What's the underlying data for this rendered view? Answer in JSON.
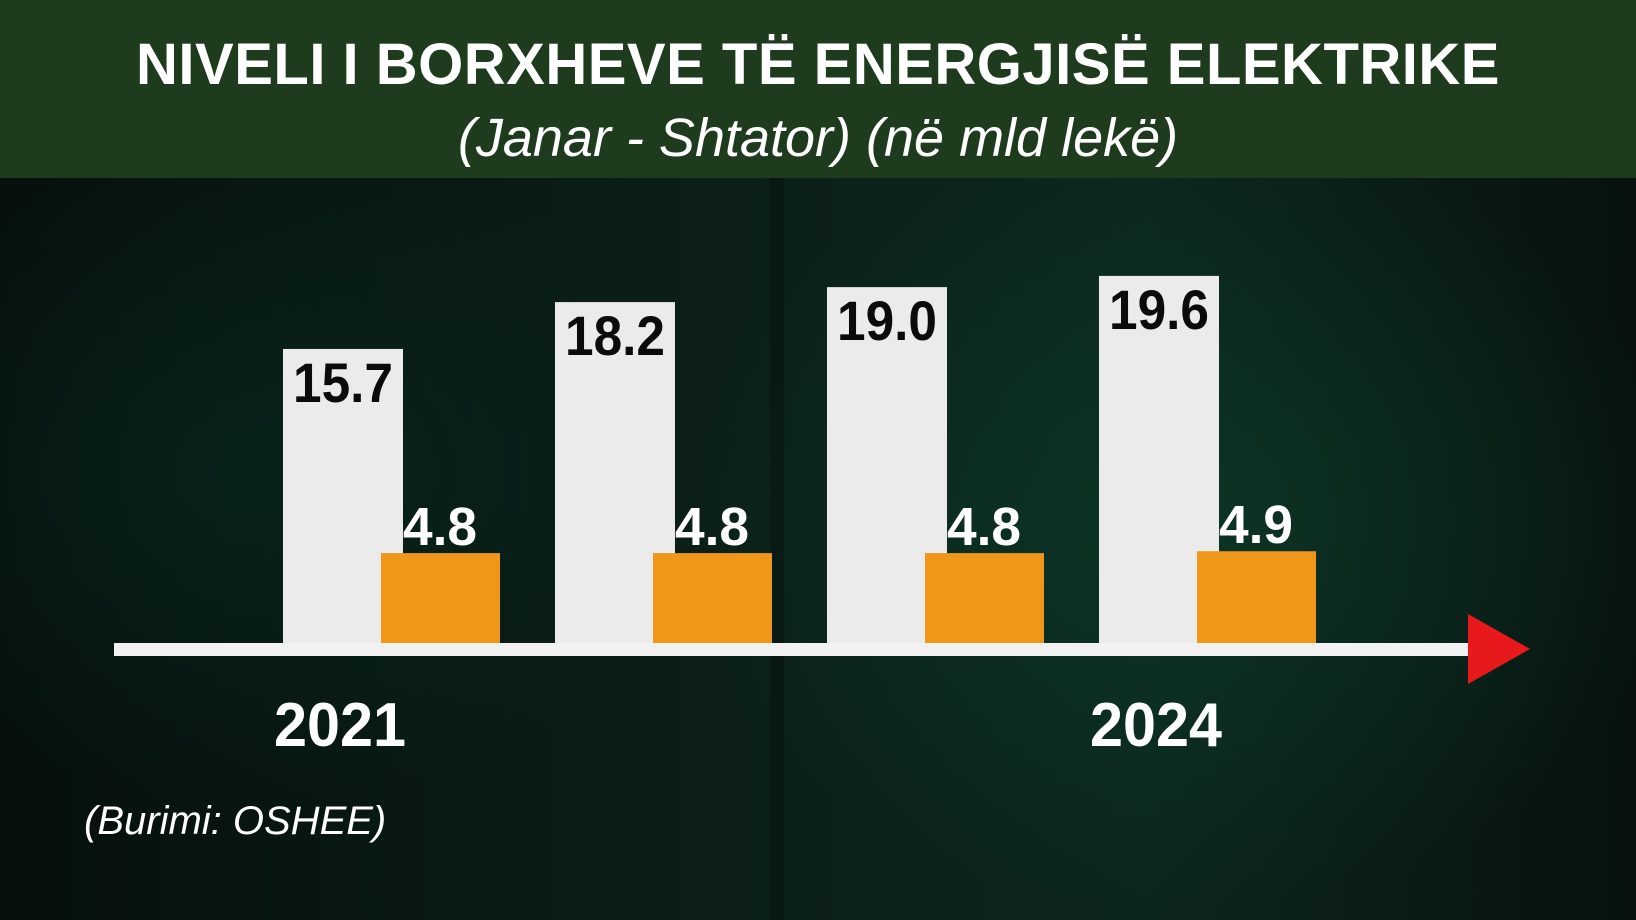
{
  "header": {
    "title": "NIVELI I BORXHEVE TË ENERGJISË ELEKTRIKE",
    "subtitle": "(Janar - Shtator) (në mld lekë)"
  },
  "source": "(Burimi: OSHEE)",
  "colors": {
    "header_bg": "#1e3b1e",
    "bar_white": "#ebebeb",
    "bar_orange": "#f09618",
    "axis": "#f2f2f2",
    "arrow": "#e8191c"
  },
  "chart_data": {
    "type": "bar",
    "categories": [
      "2021",
      "",
      "",
      "2024"
    ],
    "series": [
      {
        "values": [
          15.7,
          18.2,
          19.0,
          19.6
        ]
      },
      {
        "values": [
          4.8,
          4.8,
          4.8,
          4.9
        ]
      }
    ],
    "data_labels": [
      [
        "15.7",
        "18.2",
        "19.0",
        "19.6"
      ],
      [
        "4.8",
        "4.8",
        "4.8",
        "4.9"
      ]
    ],
    "ylim": [
      0,
      20
    ],
    "grid": false,
    "legend": "none"
  }
}
